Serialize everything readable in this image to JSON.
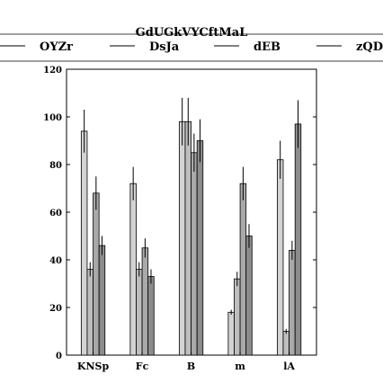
{
  "chart_data": {
    "type": "bar",
    "title": "GdUGkVYCftMaL",
    "xlabel": "",
    "ylabel": "",
    "categories": [
      "KNSp",
      "Fc",
      "B",
      "m",
      "lA"
    ],
    "ylim": [
      0,
      120
    ],
    "yticks": [
      0,
      20,
      40,
      60,
      80,
      100,
      120
    ],
    "grid": false,
    "legend_position": "top",
    "series": [
      {
        "name": "OYZr",
        "color": "#d3d3d3",
        "values": [
          94,
          72,
          98,
          18,
          82
        ],
        "errors": [
          9,
          7,
          10,
          1,
          8
        ]
      },
      {
        "name": "DsJa",
        "color": "#bebebe",
        "values": [
          36,
          36,
          98,
          32,
          10
        ],
        "errors": [
          3,
          3,
          10,
          3,
          1
        ]
      },
      {
        "name": "dEB",
        "color": "#a9a9a9",
        "values": [
          68,
          45,
          85,
          72,
          44
        ],
        "errors": [
          7,
          4,
          8,
          7,
          4
        ]
      },
      {
        "name": "zQDI",
        "color": "#8c8c8c",
        "values": [
          46,
          33,
          90,
          50,
          97
        ],
        "errors": [
          4,
          3,
          9,
          5,
          10
        ]
      }
    ]
  }
}
